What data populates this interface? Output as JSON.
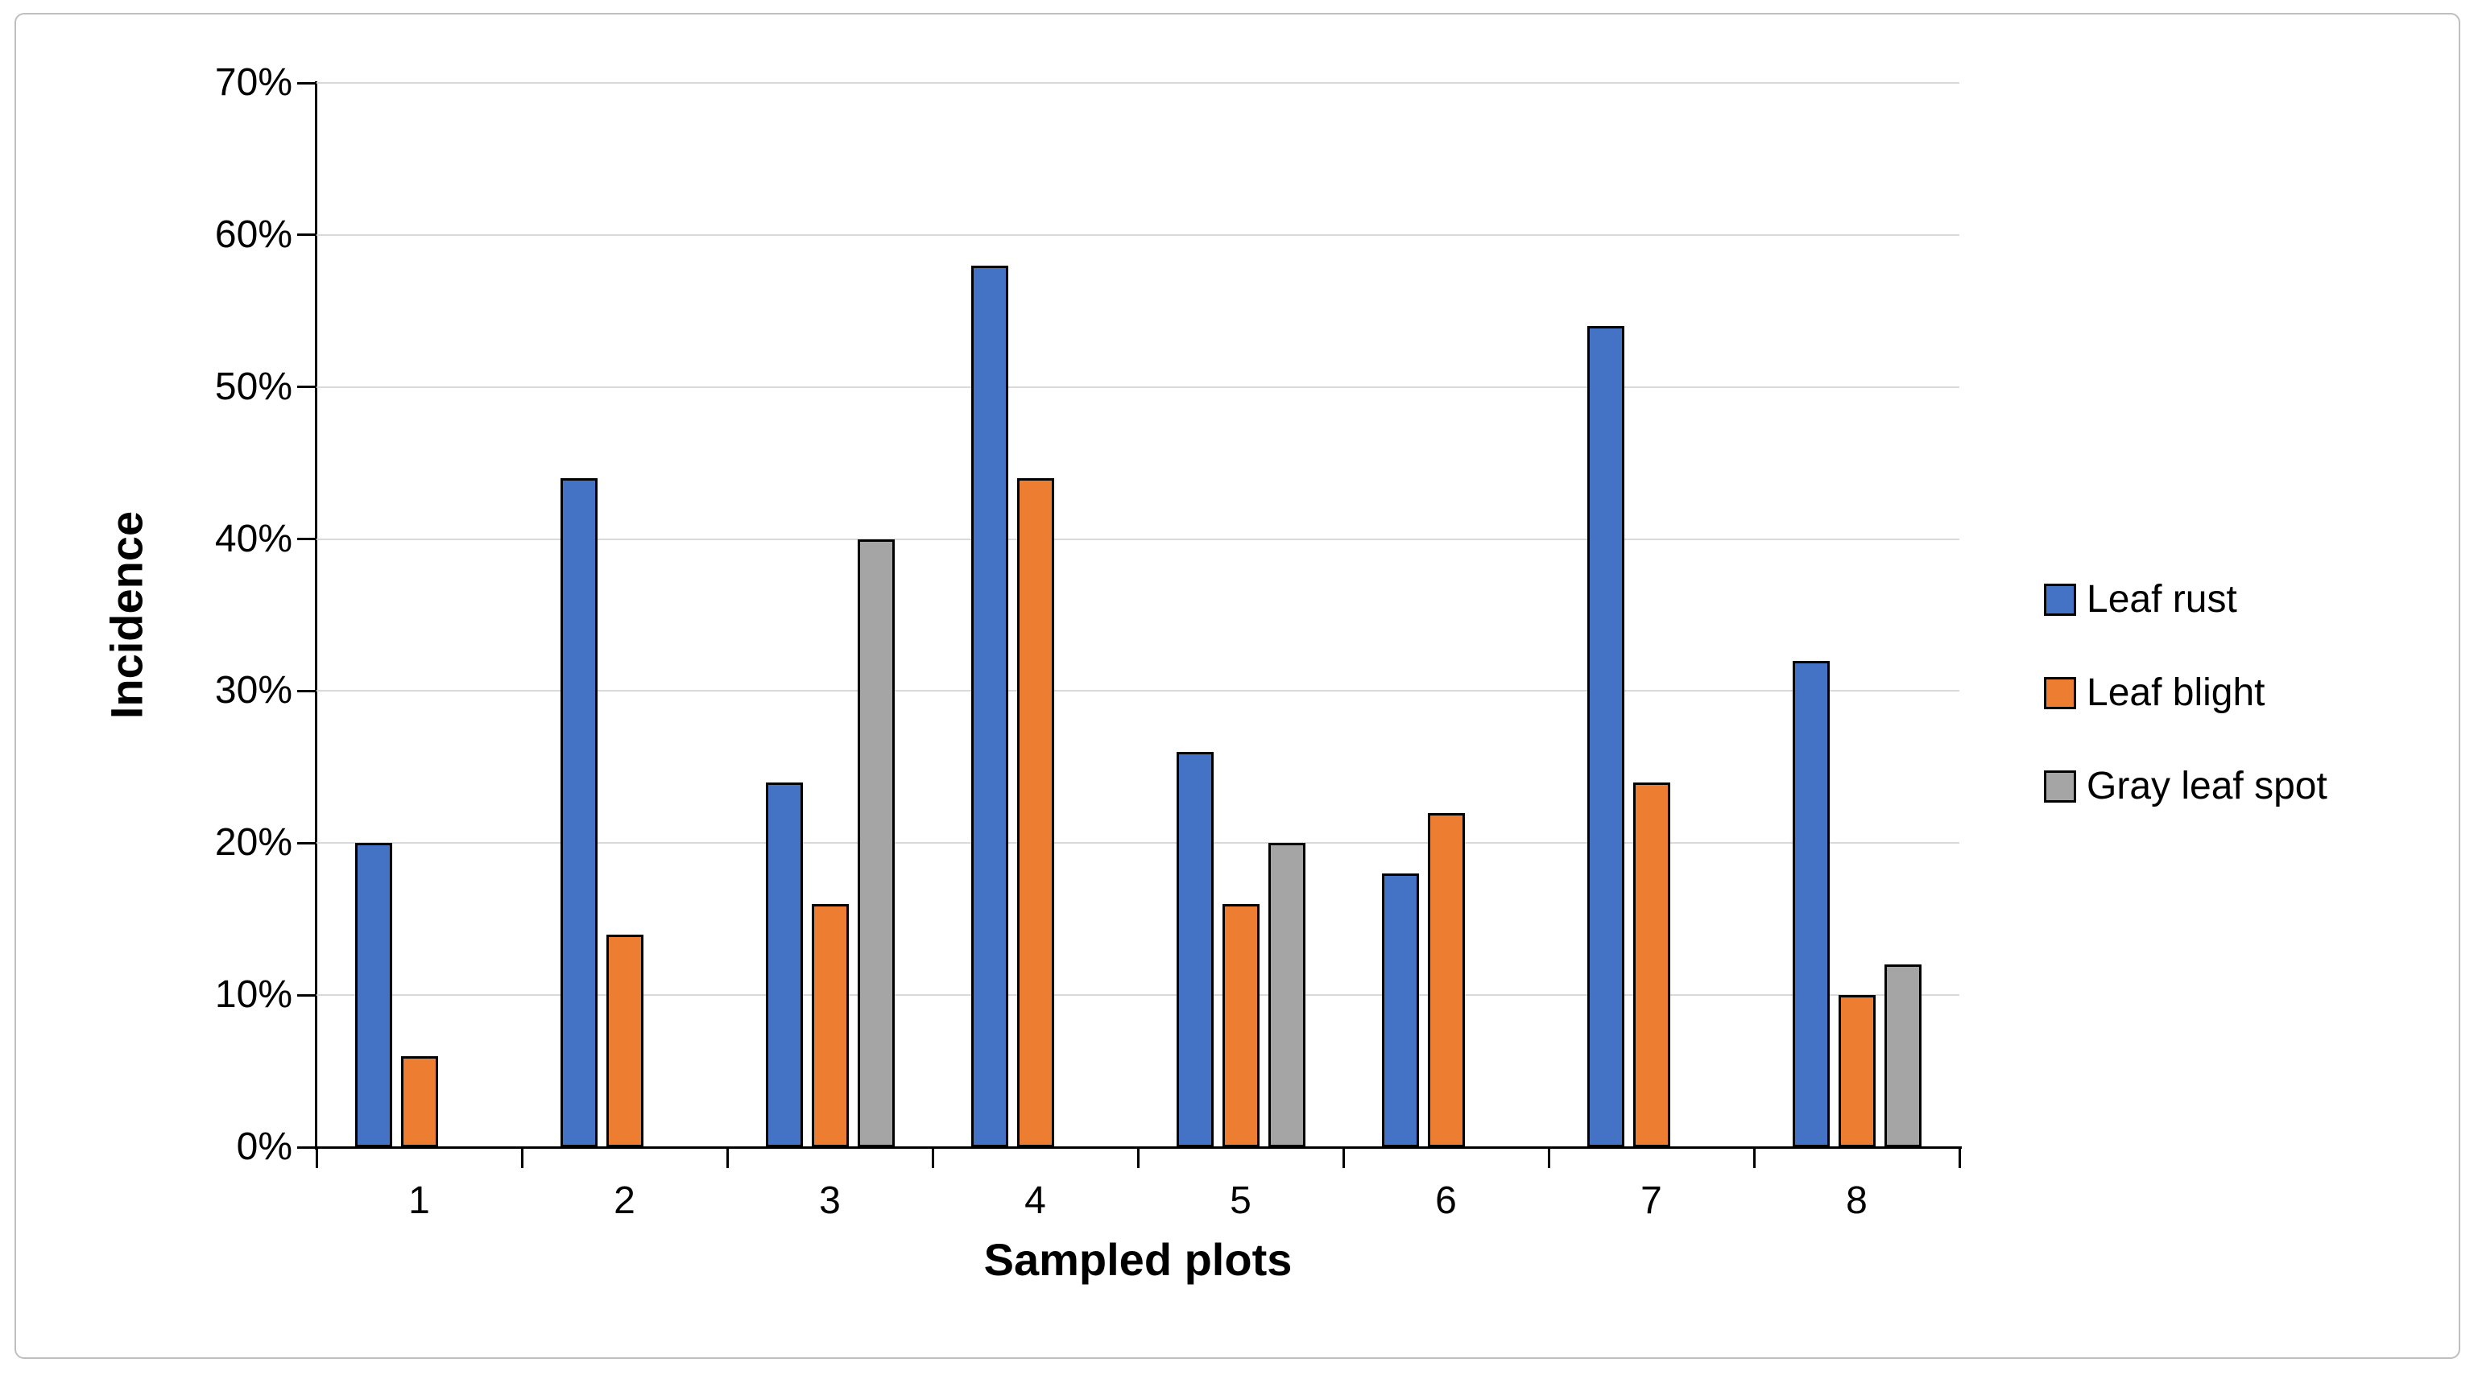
{
  "chart_data": {
    "type": "bar",
    "title": "",
    "xlabel": "Sampled plots",
    "ylabel": "Incidence",
    "categories": [
      "1",
      "2",
      "3",
      "4",
      "5",
      "6",
      "7",
      "8"
    ],
    "series": [
      {
        "name": "Leaf rust",
        "color": "#4472C4",
        "values": [
          20,
          44,
          24,
          58,
          26,
          18,
          54,
          32
        ]
      },
      {
        "name": "Leaf blight",
        "color": "#ED7D31",
        "values": [
          6,
          14,
          16,
          44,
          16,
          22,
          24,
          10
        ]
      },
      {
        "name": "Gray leaf spot",
        "color": "#A5A5A5",
        "values": [
          null,
          null,
          40,
          null,
          20,
          null,
          null,
          12
        ]
      }
    ],
    "ylim": [
      0,
      70
    ],
    "yticks": [
      {
        "value": 0,
        "label": "0%"
      },
      {
        "value": 10,
        "label": "10%"
      },
      {
        "value": 20,
        "label": "20%"
      },
      {
        "value": 30,
        "label": "30%"
      },
      {
        "value": 40,
        "label": "40%"
      },
      {
        "value": 50,
        "label": "50%"
      },
      {
        "value": 60,
        "label": "60%"
      },
      {
        "value": 70,
        "label": "70%"
      }
    ],
    "grid": "horizontal",
    "legend_position": "right",
    "colors": {
      "axis": "#000000",
      "gridline": "#D9D9D9",
      "bar_outline": "#000000",
      "frame_border": "#BFBFBF",
      "background": "#FFFFFF",
      "text": "#000000"
    }
  }
}
